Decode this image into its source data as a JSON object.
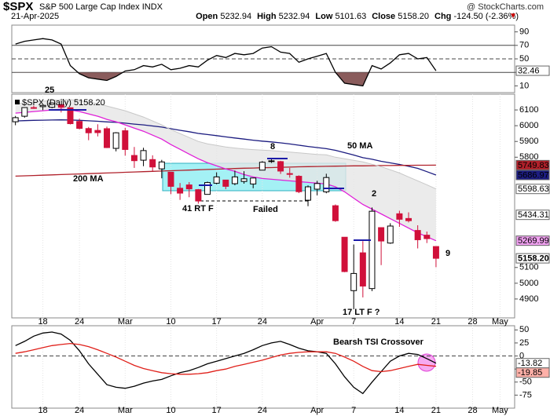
{
  "header": {
    "symbol": "$SPX",
    "name": "S&P 500 Large Cap Index",
    "exchange": "INDX",
    "watermark": "@ StockCharts.com",
    "date": "21-Apr-2025",
    "stats": [
      {
        "label": "Open",
        "value": "5232.94"
      },
      {
        "label": "High",
        "value": "5232.94"
      },
      {
        "label": "Low",
        "value": "5101.63"
      },
      {
        "label": "Close",
        "value": "5158.20"
      },
      {
        "label": "Chg",
        "value": "-124.50 (-2.36%)"
      }
    ]
  },
  "chart_data": [
    {
      "type": "candlestick",
      "legend": "$SPX (Daily) 5158.20",
      "categories": [
        null,
        null,
        null,
        "18",
        null,
        null,
        null,
        "24",
        null,
        null,
        null,
        null,
        "Mar",
        null,
        null,
        null,
        null,
        "10",
        null,
        null,
        null,
        null,
        "17",
        null,
        null,
        null,
        null,
        "24",
        null,
        null,
        null,
        null,
        null,
        "Apr",
        null,
        null,
        null,
        "7",
        null,
        null,
        null,
        null,
        "14",
        null,
        null,
        null,
        "21",
        null,
        null,
        null,
        "28",
        null,
        null,
        "May",
        null
      ],
      "open": [
        6025,
        6060,
        6115,
        6121,
        6117,
        6134,
        6114,
        6027,
        5982,
        5970,
        5981,
        5856,
        5968,
        5811,
        5781,
        5785,
        5726,
        5705,
        5603,
        5624,
        5594,
        5564,
        5635,
        5655,
        5632,
        5646,
        5630,
        5718,
        5775,
        5772,
        5696,
        5679,
        5527,
        5597,
        5580,
        5492,
        5292,
        4953,
        5193,
        4966,
        5353,
        5255,
        5441,
        5411,
        5335,
        5305,
        5232.94,
        null,
        null,
        null,
        null,
        null,
        null,
        null,
        null
      ],
      "high": [
        6062,
        6116,
        6127,
        6129,
        6147,
        6134,
        6114,
        6044,
        5992,
        6009,
        5994,
        5959,
        5986,
        5865,
        5860,
        5812,
        5783,
        5705,
        5636,
        5642,
        5598,
        5645,
        5704,
        5655,
        5715,
        5711,
        5670,
        5775,
        5786,
        5777,
        5732,
        5685,
        5621,
        5650,
        5695,
        5500,
        5292,
        5246,
        5267,
        5481,
        5353,
        5381,
        5460,
        5450,
        5368,
        5328,
        5232.94,
        null,
        null,
        null,
        null,
        null,
        null,
        null,
        null
      ],
      "low": [
        6003,
        6051,
        6107,
        6099,
        6111,
        6084,
        6008,
        5977,
        5908,
        5932,
        5858,
        5837,
        5810,
        5732,
        5743,
        5711,
        5666,
        5565,
        5529,
        5546,
        5505,
        5564,
        5628,
        5597,
        5622,
        5632,
        5603,
        5718,
        5764,
        5694,
        5670,
        5572,
        5489,
        5558,
        5571,
        5390,
        5070,
        4835,
        4910,
        4950,
        5115,
        5250,
        5358,
        5386,
        5221,
        5255,
        5101.63,
        null,
        null,
        null,
        null,
        null,
        null,
        null,
        null
      ],
      "close": [
        6051,
        6115,
        6114,
        6129,
        6144,
        6117,
        6013,
        5983,
        5955,
        5956,
        5861,
        5955,
        5849,
        5778,
        5842,
        5738,
        5770,
        5615,
        5572,
        5599,
        5522,
        5639,
        5675,
        5615,
        5675,
        5663,
        5668,
        5768,
        5777,
        5712,
        5693,
        5581,
        5612,
        5633,
        5671,
        5397,
        5074,
        5062,
        4982,
        5457,
        5268,
        5363,
        5406,
        5397,
        5276,
        5283,
        5158.2,
        null,
        null,
        null,
        null,
        null,
        null,
        null,
        null
      ],
      "up_color": "#ffffff",
      "down_color": "#d0103a",
      "series": [
        {
          "name": "50 MA",
          "color": "#1c1c80",
          "values": [
            6030,
            6032,
            6034,
            6035,
            6036,
            6037,
            6036,
            6034,
            6031,
            6028,
            6024,
            6021,
            6016,
            6010,
            6005,
            5998,
            5991,
            5981,
            5971,
            5962,
            5951,
            5944,
            5937,
            5929,
            5922,
            5915,
            5908,
            5902,
            5897,
            5891,
            5884,
            5876,
            5868,
            5861,
            5854,
            5844,
            5829,
            5814,
            5797,
            5787,
            5774,
            5764,
            5754,
            5742,
            5729,
            5708,
            5686.97,
            null,
            null,
            null,
            null,
            null,
            null,
            null,
            null
          ]
        },
        {
          "name": "200 MA",
          "color": "#b0202a",
          "values": [
            5680,
            5682,
            5684,
            5686,
            5688,
            5690,
            5692,
            5694,
            5696,
            5698,
            5700,
            5702,
            5704,
            5706,
            5708,
            5710,
            5712,
            5714,
            5716,
            5718,
            5720,
            5722,
            5724,
            5726,
            5728,
            5730,
            5731,
            5733,
            5734,
            5736,
            5737,
            5739,
            5740,
            5741,
            5742,
            5743,
            5744,
            5745,
            5745,
            5746,
            5747,
            5747,
            5748,
            5748,
            5749,
            5749,
            5749.83,
            null,
            null,
            null,
            null,
            null,
            null,
            null,
            null
          ]
        },
        {
          "color": "#e020d8",
          "values": [
            6080,
            6085,
            6090,
            6095,
            6100,
            6105,
            6100,
            6090,
            6075,
            6060,
            6040,
            6025,
            6005,
            5985,
            5965,
            5940,
            5915,
            5880,
            5850,
            5820,
            5790,
            5765,
            5745,
            5725,
            5710,
            5690,
            5675,
            5665,
            5660,
            5655,
            5650,
            5645,
            5640,
            5635,
            5630,
            5612,
            5580,
            5540,
            5500,
            5470,
            5440,
            5410,
            5380,
            5350,
            5320,
            5295,
            5269.99,
            null,
            null,
            null,
            null,
            null,
            null,
            null,
            null
          ]
        },
        {
          "color": "#c8c8c8",
          "band": true,
          "values": [
            6140,
            6145,
            6150,
            6155,
            6160,
            6165,
            6165,
            6160,
            6150,
            6140,
            6125,
            6110,
            6095,
            6075,
            6055,
            6030,
            6005,
            5975,
            5950,
            5925,
            5900,
            5885,
            5875,
            5865,
            5858,
            5852,
            5848,
            5845,
            5842,
            5838,
            5833,
            5828,
            5823,
            5818,
            5815,
            5800,
            5790,
            5780,
            5770,
            5755,
            5740,
            5720,
            5700,
            5675,
            5650,
            5625,
            5598.63,
            null,
            null,
            null,
            null,
            null,
            null,
            null,
            null
          ]
        }
      ],
      "ylim": [
        4780,
        6200
      ],
      "yticks": [
        6100,
        6000,
        5900,
        5800,
        5100,
        5000,
        4900
      ],
      "value_flags": [
        {
          "value": 5749.83,
          "label": "5749.83",
          "color": "#b0202a"
        },
        {
          "value": 5686.97,
          "label": "5686.97",
          "color": "#1c1c80"
        },
        {
          "value": 5598.63,
          "label": "5598.63",
          "color": "#ffffff"
        },
        {
          "value": 5434.31,
          "label": "5434.31",
          "color": "#ffffff"
        },
        {
          "value": 5269.99,
          "label": "5269.99",
          "color": "#f0a0f0"
        },
        {
          "value": 5158.2,
          "label": "5158.20",
          "color": "#ffffff"
        }
      ],
      "annotations": [
        {
          "text": "25",
          "color": "#1a1aa8"
        },
        {
          "text": "8",
          "color": "#1a1aa8"
        },
        {
          "text": "41 RT F",
          "color": "#1a1aa8"
        },
        {
          "text": "Failed",
          "color": "#d01010"
        },
        {
          "text": "2",
          "color": "#1a1aa8"
        },
        {
          "text": "9",
          "color": "#1a1aa8"
        },
        {
          "text": "17 LT F ?",
          "color": "#1a1aa8"
        }
      ]
    },
    {
      "type": "line",
      "color": "#000000",
      "fill_color": "#8a5c5c",
      "values": [
        72,
        76,
        78,
        80,
        78,
        72,
        40,
        28,
        22,
        20,
        18,
        24,
        32,
        34,
        40,
        38,
        42,
        34,
        36,
        40,
        38,
        48,
        55,
        52,
        58,
        56,
        58,
        66,
        68,
        60,
        58,
        45,
        50,
        54,
        58,
        30,
        14,
        12,
        10,
        40,
        35,
        44,
        56,
        58,
        50,
        52,
        32.46,
        null,
        null,
        null,
        null,
        null,
        null,
        null,
        null
      ],
      "ylim": [
        0,
        100
      ],
      "yticks": [
        90,
        70,
        50,
        30,
        10
      ],
      "reference_lines": [
        70,
        50,
        30
      ],
      "value_flags": [
        {
          "value": 32.46,
          "label": "32.46",
          "color": "#ffffff"
        }
      ]
    },
    {
      "type": "line",
      "annotation": "Bearsh TSI Crossover",
      "categories": [
        null,
        null,
        null,
        "18",
        null,
        null,
        null,
        "24",
        null,
        null,
        null,
        null,
        "Mar",
        null,
        null,
        null,
        null,
        "10",
        null,
        null,
        null,
        null,
        "17",
        null,
        null,
        null,
        null,
        "24",
        null,
        null,
        null,
        null,
        null,
        "Apr",
        null,
        null,
        null,
        "7",
        null,
        null,
        null,
        null,
        "14",
        null,
        null,
        null,
        "21",
        null,
        null,
        null,
        "28",
        null,
        null,
        "May",
        null
      ],
      "series": [
        {
          "color": "#000000",
          "values": [
            20,
            28,
            38,
            44,
            46,
            42,
            30,
            10,
            -15,
            -35,
            -55,
            -60,
            -62,
            -58,
            -52,
            -48,
            -45,
            -38,
            -32,
            -28,
            -22,
            -15,
            -10,
            -5,
            0,
            5,
            12,
            20,
            25,
            28,
            22,
            15,
            10,
            8,
            5,
            -15,
            -40,
            -60,
            -72,
            -50,
            -30,
            -10,
            0,
            5,
            3,
            -5,
            -13.82,
            null,
            null,
            null,
            null,
            null,
            null,
            null,
            null
          ]
        },
        {
          "color": "#e0201a",
          "values": [
            5,
            8,
            12,
            16,
            20,
            22,
            24,
            22,
            18,
            12,
            5,
            -2,
            -10,
            -18,
            -24,
            -28,
            -32,
            -34,
            -35,
            -35,
            -34,
            -32,
            -28,
            -25,
            -20,
            -16,
            -12,
            -8,
            -3,
            2,
            5,
            7,
            8,
            8,
            8,
            5,
            -2,
            -10,
            -20,
            -28,
            -30,
            -28,
            -24,
            -20,
            -16,
            -18,
            -19.85,
            null,
            null,
            null,
            null,
            null,
            null,
            null,
            null
          ]
        }
      ],
      "ylim": [
        -100,
        58
      ],
      "yticks": [
        50,
        25,
        0,
        -25,
        -50,
        -75
      ],
      "reference_lines": [
        0
      ],
      "value_flags": [
        {
          "value": -13.82,
          "label": "-13.82",
          "color": "#ffffff"
        },
        {
          "value": -19.85,
          "label": "-19.85",
          "color": "#ffb0a8"
        }
      ]
    }
  ]
}
